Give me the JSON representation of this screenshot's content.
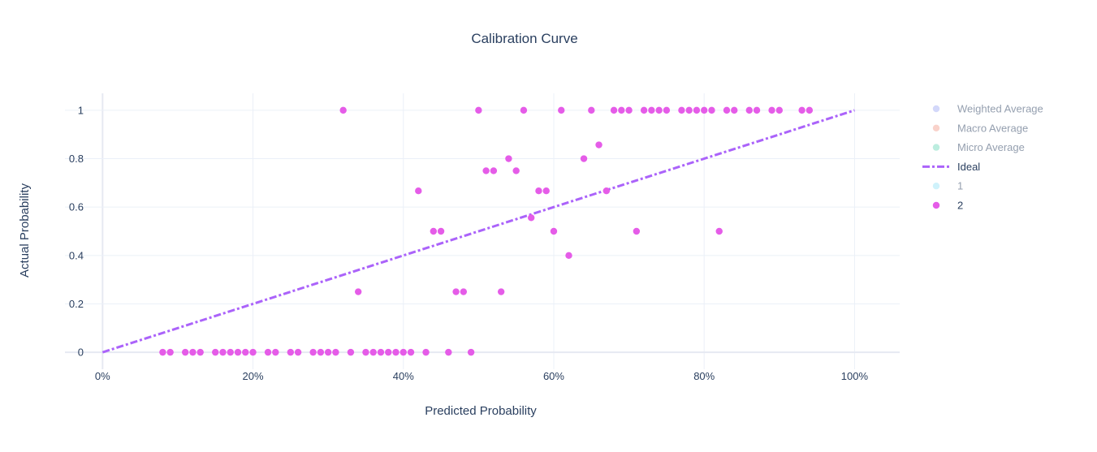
{
  "chart_data": {
    "type": "scatter",
    "title": "Calibration Curve",
    "xlabel": "Predicted Probability",
    "ylabel": "Actual Probability",
    "xlim": [
      -0.05,
      1.06
    ],
    "ylim": [
      -0.07,
      1.07
    ],
    "x_ticks": [
      0,
      0.2,
      0.4,
      0.6,
      0.8,
      1.0
    ],
    "x_tick_labels": [
      "0%",
      "20%",
      "40%",
      "60%",
      "80%",
      "100%"
    ],
    "y_ticks": [
      0,
      0.2,
      0.4,
      0.6,
      0.8,
      1.0
    ],
    "y_tick_labels": [
      "0",
      "0.2",
      "0.4",
      "0.6",
      "0.8",
      "1"
    ],
    "grid": true,
    "legend_position": "right",
    "legend": [
      {
        "name": "Weighted Average",
        "color": "#a7b1f5",
        "kind": "marker",
        "hidden": true
      },
      {
        "name": "Macro Average",
        "color": "#f4a595",
        "kind": "marker",
        "hidden": true
      },
      {
        "name": "Micro Average",
        "color": "#7adcbf",
        "kind": "marker",
        "hidden": true
      },
      {
        "name": "Ideal",
        "color": "#ab63fa",
        "kind": "dashdot-line",
        "hidden": false
      },
      {
        "name": "1",
        "color": "#a0e5f8",
        "kind": "marker",
        "hidden": true
      },
      {
        "name": "2",
        "color": "#e55ce8",
        "kind": "marker",
        "hidden": false
      }
    ],
    "series": [
      {
        "name": "Ideal",
        "kind": "line",
        "color": "#ab63fa",
        "x": [
          0,
          1
        ],
        "y": [
          0,
          1
        ]
      },
      {
        "name": "2",
        "kind": "marker",
        "color": "#e55ce8",
        "points": [
          [
            0.08,
            0
          ],
          [
            0.09,
            0
          ],
          [
            0.11,
            0
          ],
          [
            0.12,
            0
          ],
          [
            0.13,
            0
          ],
          [
            0.15,
            0
          ],
          [
            0.16,
            0
          ],
          [
            0.17,
            0
          ],
          [
            0.18,
            0
          ],
          [
            0.19,
            0
          ],
          [
            0.2,
            0
          ],
          [
            0.22,
            0
          ],
          [
            0.23,
            0
          ],
          [
            0.25,
            0
          ],
          [
            0.26,
            0
          ],
          [
            0.28,
            0
          ],
          [
            0.29,
            0
          ],
          [
            0.3,
            0
          ],
          [
            0.31,
            0
          ],
          [
            0.33,
            0
          ],
          [
            0.35,
            0
          ],
          [
            0.36,
            0
          ],
          [
            0.37,
            0
          ],
          [
            0.38,
            0
          ],
          [
            0.39,
            0
          ],
          [
            0.4,
            0
          ],
          [
            0.41,
            0
          ],
          [
            0.43,
            0
          ],
          [
            0.46,
            0
          ],
          [
            0.49,
            0
          ],
          [
            0.32,
            1
          ],
          [
            0.34,
            0.25
          ],
          [
            0.42,
            0.667
          ],
          [
            0.44,
            0.5
          ],
          [
            0.45,
            0.5
          ],
          [
            0.47,
            0.25
          ],
          [
            0.48,
            0.25
          ],
          [
            0.5,
            1
          ],
          [
            0.51,
            0.75
          ],
          [
            0.52,
            0.75
          ],
          [
            0.53,
            0.25
          ],
          [
            0.54,
            0.8
          ],
          [
            0.55,
            0.75
          ],
          [
            0.56,
            1
          ],
          [
            0.57,
            0.556
          ],
          [
            0.58,
            0.667
          ],
          [
            0.59,
            0.667
          ],
          [
            0.6,
            0.5
          ],
          [
            0.61,
            1
          ],
          [
            0.62,
            0.4
          ],
          [
            0.64,
            0.8
          ],
          [
            0.65,
            1
          ],
          [
            0.66,
            0.857
          ],
          [
            0.67,
            0.667
          ],
          [
            0.68,
            1
          ],
          [
            0.69,
            1
          ],
          [
            0.7,
            1
          ],
          [
            0.71,
            0.5
          ],
          [
            0.72,
            1
          ],
          [
            0.73,
            1
          ],
          [
            0.74,
            1
          ],
          [
            0.75,
            1
          ],
          [
            0.77,
            1
          ],
          [
            0.78,
            1
          ],
          [
            0.79,
            1
          ],
          [
            0.8,
            1
          ],
          [
            0.81,
            1
          ],
          [
            0.82,
            0.5
          ],
          [
            0.83,
            1
          ],
          [
            0.84,
            1
          ],
          [
            0.86,
            1
          ],
          [
            0.87,
            1
          ],
          [
            0.89,
            1
          ],
          [
            0.9,
            1
          ],
          [
            0.93,
            1
          ],
          [
            0.94,
            1
          ]
        ]
      }
    ]
  }
}
